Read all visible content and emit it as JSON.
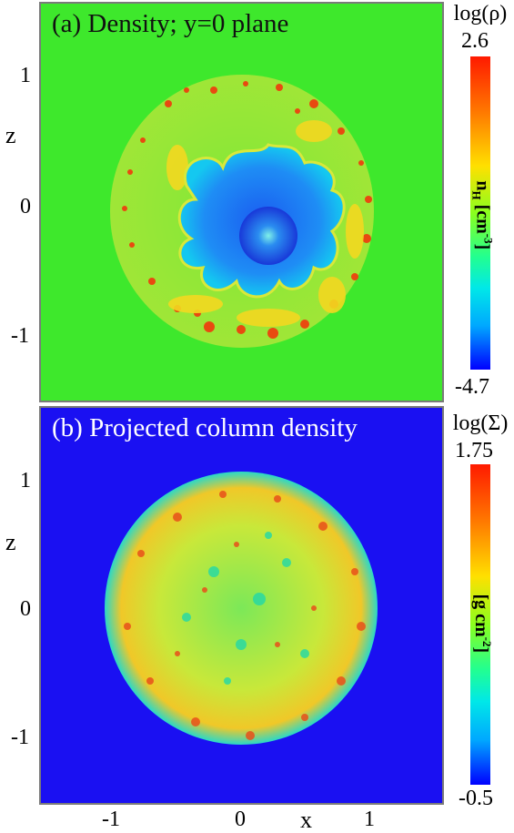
{
  "panel_a": {
    "title": "(a) Density; y=0 plane",
    "ylabel": "z",
    "yticks": [
      "1",
      "0",
      "-1"
    ],
    "colorbar": {
      "title": "log(ρ)",
      "max": "2.6",
      "min": "-4.7",
      "unit_main": "n",
      "unit_sub": "H",
      "unit_rest": " [cm",
      "unit_sup": "-3",
      "unit_close": "]"
    }
  },
  "panel_b": {
    "title": "(b) Projected column density",
    "ylabel": "z",
    "yticks": [
      "1",
      "0",
      "-1"
    ],
    "xlabel": "x",
    "xticks": [
      "-1",
      "0",
      "1"
    ],
    "colorbar": {
      "title": "log(Σ)",
      "max": "1.75",
      "min": "-0.5",
      "unit_main": "[g cm",
      "unit_sup": "-2",
      "unit_close": "]"
    }
  },
  "colors": {
    "panel_a_background": "#3ee82c",
    "panel_b_background": "#1a10f2",
    "frame": "#7a7a7a"
  }
}
